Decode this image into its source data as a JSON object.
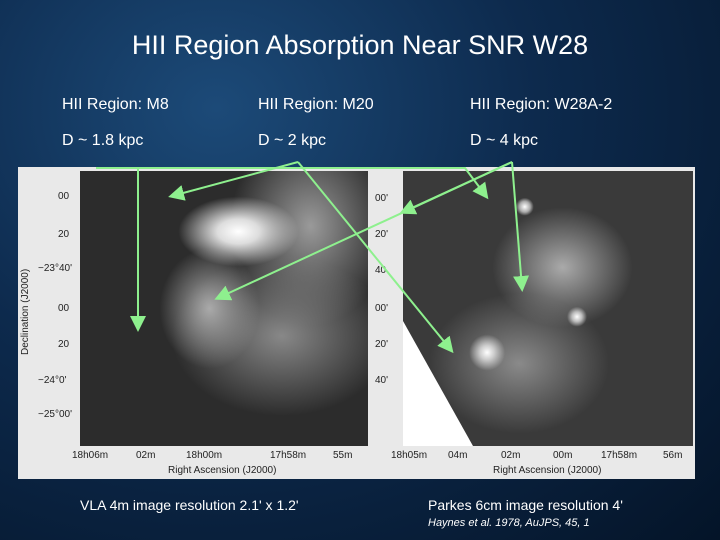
{
  "title": "HII Region Absorption Near SNR W28",
  "regions": [
    {
      "name": "HII Region: M8",
      "distance": "D ~ 1.8 kpc"
    },
    {
      "name": "HII Region: M20",
      "distance": "D ~ 2 kpc"
    },
    {
      "name": "HII Region: W28A-2",
      "distance": "D ~ 4 kpc"
    }
  ],
  "left_panel": {
    "dec_ticks": [
      "00",
      "20",
      "−23°40'",
      "00",
      "20",
      "−24°0'",
      "−25°00'"
    ],
    "ra_ticks": [
      "18h06m",
      "02m",
      "18h00m",
      "17h58m",
      "55m"
    ],
    "xlabel": "Right Ascension (J2000)",
    "ylabel": "Declination (J2000)"
  },
  "right_panel": {
    "dec_ticks": [
      "00'",
      "20'",
      "40",
      "00'",
      "20'",
      "40'"
    ],
    "ra_ticks": [
      "18h05m",
      "04m",
      "02m",
      "00m",
      "17h58m",
      "56m"
    ],
    "xlabel": "Right Ascension (J2000)"
  },
  "captions": {
    "vla": "VLA 4m image resolution 2.1' x 1.2'",
    "parkes": "Parkes 6cm image resolution 4'",
    "reference": "Haynes et al. 1978, AuJPS, 45, 1"
  },
  "colors": {
    "arrow": "#8ef08e",
    "background": "#0d2a4d"
  }
}
